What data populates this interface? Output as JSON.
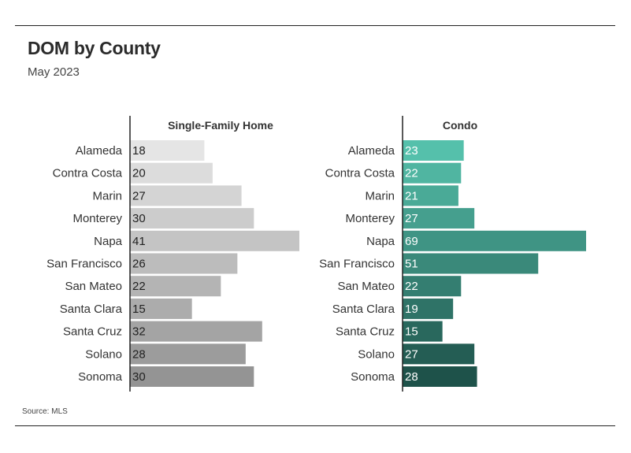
{
  "header": {
    "title": "DOM by County",
    "subtitle": "May 2023"
  },
  "footer": {
    "source": "Source: MLS"
  },
  "chart_data": [
    {
      "type": "bar",
      "orientation": "horizontal",
      "title": "Single-Family Home",
      "categories": [
        "Alameda",
        "Contra Costa",
        "Marin",
        "Monterey",
        "Napa",
        "San Francisco",
        "San Mateo",
        "Santa Clara",
        "Santa Cruz",
        "Solano",
        "Sonoma"
      ],
      "values": [
        18,
        20,
        27,
        30,
        41,
        26,
        22,
        15,
        32,
        28,
        30
      ],
      "colors": [
        "#e5e5e5",
        "#dcdcdc",
        "#d4d4d4",
        "#cccccc",
        "#c4c4c4",
        "#bcbcbc",
        "#b4b4b4",
        "#acacac",
        "#a4a4a4",
        "#9c9c9c",
        "#949494"
      ],
      "value_label_color": "#222222",
      "xlim": [
        0,
        41
      ],
      "grid": false
    },
    {
      "type": "bar",
      "orientation": "horizontal",
      "title": "Condo",
      "categories": [
        "Alameda",
        "Contra Costa",
        "Marin",
        "Monterey",
        "Napa",
        "San Francisco",
        "San Mateo",
        "Santa Clara",
        "Santa Cruz",
        "Solano",
        "Sonoma"
      ],
      "values": [
        23,
        22,
        21,
        27,
        69,
        51,
        22,
        19,
        15,
        27,
        28
      ],
      "colors": [
        "#55c0ab",
        "#50b5a1",
        "#4aaa97",
        "#459f8e",
        "#3f9484",
        "#3a897a",
        "#347e71",
        "#2f7367",
        "#29685d",
        "#245d54",
        "#1e524a"
      ],
      "value_label_color": "#ffffff",
      "xlim": [
        0,
        69
      ],
      "grid": false
    }
  ]
}
